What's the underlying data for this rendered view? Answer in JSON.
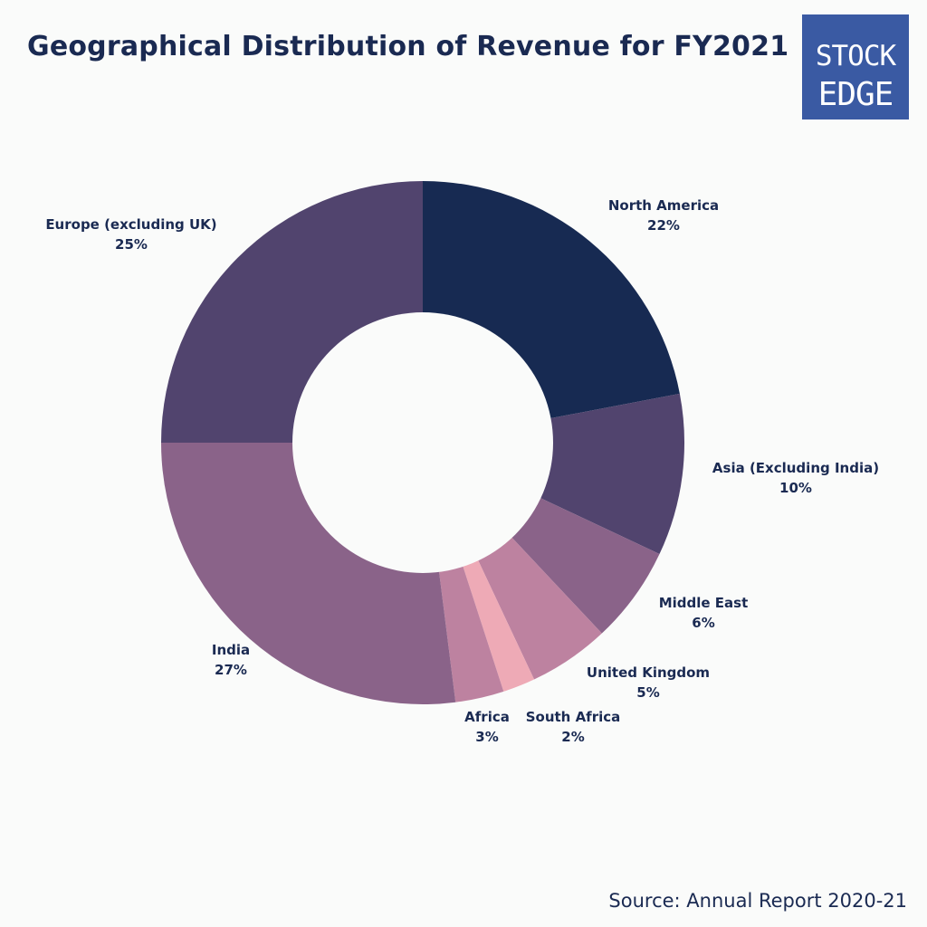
{
  "chart_data": {
    "type": "pie",
    "title": "Geographical Distribution of Revenue for FY2021",
    "slices": [
      {
        "label": "North America",
        "value": 22,
        "value_label": "22%",
        "color": "#172a52"
      },
      {
        "label": "Asia (Excluding India)",
        "value": 10,
        "value_label": "10%",
        "color": "#51446e"
      },
      {
        "label": "Middle East",
        "value": 6,
        "value_label": "6%",
        "color": "#8a6389"
      },
      {
        "label": "United Kingdom",
        "value": 5,
        "value_label": "5%",
        "color": "#bd82a0"
      },
      {
        "label": "South Africa",
        "value": 2,
        "value_label": "2%",
        "color": "#eeaab6"
      },
      {
        "label": "Africa",
        "value": 3,
        "value_label": "3%",
        "color": "#bd82a0"
      },
      {
        "label": "India",
        "value": 27,
        "value_label": "27%",
        "color": "#8a6389"
      },
      {
        "label": "Europe (excluding UK)",
        "value": 25,
        "value_label": "25%",
        "color": "#51446e"
      }
    ],
    "donut": true,
    "legend": "none",
    "labels_outside": true
  },
  "logo": {
    "line1": "STOCK",
    "line2": "EDGE",
    "color": "#3a5aa3"
  },
  "source": "Source: Annual Report 2020-21"
}
